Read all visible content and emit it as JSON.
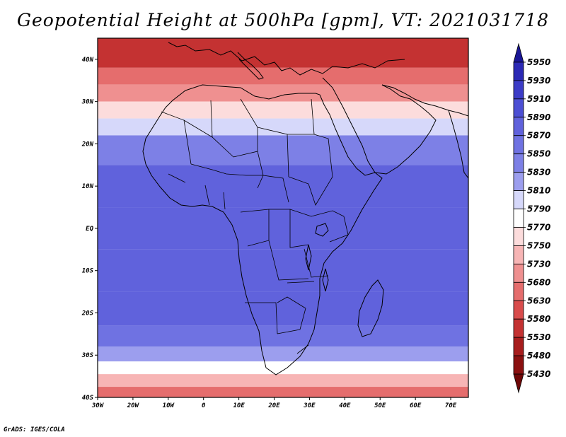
{
  "title": "Geopotential Height at 500hPa [gpm], VT: 2021031718",
  "credit": "GrADS: IGES/COLA",
  "chart_data": {
    "type": "heatmap",
    "variable": "Geopotential Height at 500hPa",
    "units": "gpm",
    "valid_time": "2021031718",
    "lon_range": [
      -30,
      75
    ],
    "lat_range": [
      -40,
      45
    ],
    "x_ticks": [
      "30W",
      "20W",
      "10W",
      "0",
      "10E",
      "20E",
      "30E",
      "40E",
      "50E",
      "60E",
      "70E"
    ],
    "x_tick_values": [
      -30,
      -20,
      -10,
      0,
      10,
      20,
      30,
      40,
      50,
      60,
      70
    ],
    "y_ticks": [
      "40N",
      "30N",
      "20N",
      "10N",
      "EQ",
      "10S",
      "20S",
      "30S",
      "40S"
    ],
    "y_tick_values": [
      40,
      30,
      20,
      10,
      0,
      -10,
      -20,
      -30,
      -40
    ],
    "colorbar": {
      "levels": [
        5950,
        5930,
        5910,
        5890,
        5870,
        5850,
        5830,
        5810,
        5790,
        5770,
        5750,
        5730,
        5680,
        5630,
        5580,
        5530,
        5480,
        5430
      ],
      "colors": [
        "#1a1696",
        "#2b29b5",
        "#3c3cc7",
        "#4c4fd4",
        "#6062dc",
        "#6f72e2",
        "#7d80e6",
        "#9c9eee",
        "#d6d8fa",
        "#ffffff",
        "#fcdcdc",
        "#f7b5b5",
        "#ef9090",
        "#e56d6d",
        "#d94c4c",
        "#c43232",
        "#a71d1d",
        "#8b1010",
        "#6e0707"
      ]
    },
    "field_bands": [
      {
        "lat": 40,
        "value": 5560
      },
      {
        "lat": 36,
        "value": 5640
      },
      {
        "lat": 32,
        "value": 5700
      },
      {
        "lat": 28,
        "value": 5760
      },
      {
        "lat": 24,
        "value": 5800
      },
      {
        "lat": 20,
        "value": 5840
      },
      {
        "lat": 10,
        "value": 5870
      },
      {
        "lat": 0,
        "value": 5870
      },
      {
        "lat": -10,
        "value": 5875
      },
      {
        "lat": -20,
        "value": 5870
      },
      {
        "lat": -26,
        "value": 5850
      },
      {
        "lat": -30,
        "value": 5820
      },
      {
        "lat": -33,
        "value": 5780
      },
      {
        "lat": -36,
        "value": 5730
      },
      {
        "lat": -39,
        "value": 5660
      }
    ]
  }
}
